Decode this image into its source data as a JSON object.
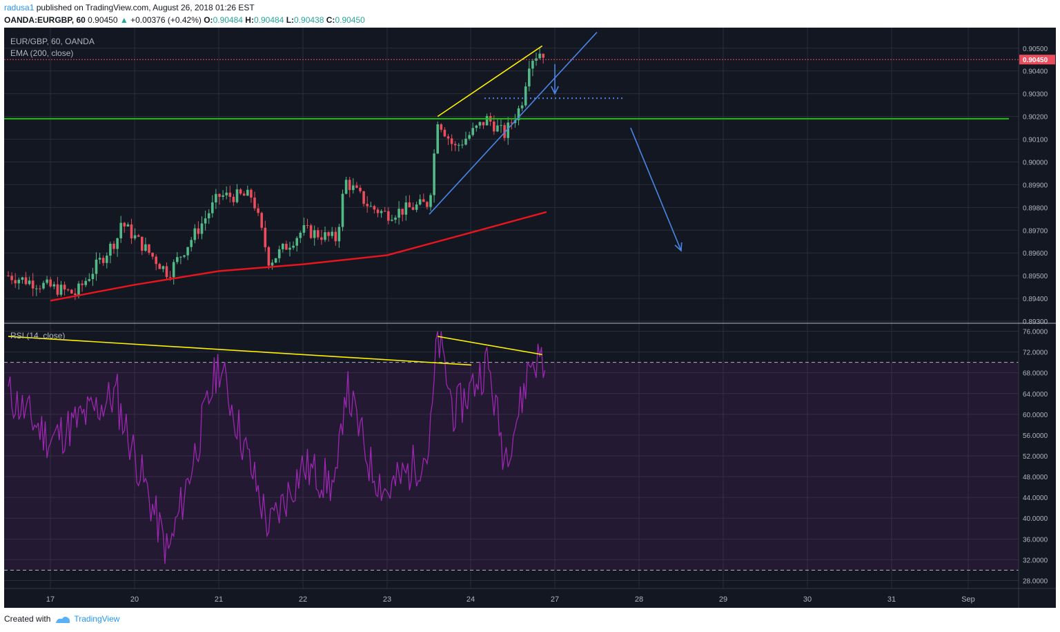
{
  "header": {
    "user": "radusa1",
    "published": " published on TradingView.com, August 26, 2018 01:26 EST",
    "symbol": "OANDA:EURGBP, 60",
    "price": "0.90450",
    "arrow": "▲",
    "change": "+0.00376 (+0.42%)",
    "o_label": "O:",
    "o": "0.90484",
    "h_label": "H:",
    "h": "0.90484",
    "l_label": "L:",
    "l": "0.90438",
    "c_label": "C:",
    "c": "0.90450"
  },
  "chart": {
    "title": "EUR/GBP, 60, OANDA",
    "ema_label": "EMA (200, close)",
    "rsi_label": "RSI (14, close)",
    "price_ticks": [
      "0.90500",
      "0.90400",
      "0.90300",
      "0.90200",
      "0.90100",
      "0.90000",
      "0.89900",
      "0.89800",
      "0.89700",
      "0.89600",
      "0.89500",
      "0.89400",
      "0.89300"
    ],
    "price_ticks_values": [
      0.905,
      0.904,
      0.903,
      0.902,
      0.901,
      0.9,
      0.899,
      0.898,
      0.897,
      0.896,
      0.895,
      0.894,
      0.893
    ],
    "last_price_label": "0.90450",
    "rsi_ticks": [
      "76.0000",
      "72.0000",
      "68.0000",
      "64.0000",
      "60.0000",
      "56.0000",
      "52.0000",
      "48.0000",
      "44.0000",
      "40.0000",
      "36.0000",
      "32.0000",
      "28.0000"
    ],
    "rsi_ticks_values": [
      76,
      72,
      68,
      64,
      60,
      56,
      52,
      48,
      44,
      40,
      36,
      32,
      28
    ],
    "x_ticks": [
      "17",
      "20",
      "21",
      "22",
      "23",
      "24",
      "27",
      "28",
      "29",
      "30",
      "31",
      "Sep"
    ]
  },
  "chart_data": {
    "type": "candlestick",
    "colors": {
      "up": "#53b987",
      "down": "#eb4d5c",
      "ema": "#e8151e",
      "rsi": "#9c27b0",
      "support": "#1dbf13",
      "trend": "#2962ff",
      "wedge": "#fff200",
      "background": "#131722"
    },
    "x_dates": [
      "17",
      "20",
      "21",
      "22",
      "23",
      "24",
      "27",
      "28",
      "29",
      "30",
      "31",
      "Sep"
    ],
    "price_range": [
      0.893,
      0.9056
    ],
    "rsi_range": [
      27,
      77
    ],
    "rsi_levels": [
      70,
      30
    ],
    "support_level": 0.9019,
    "ema200_approx": [
      {
        "x": "17",
        "y": 0.8939
      },
      {
        "x": "20",
        "y": 0.8946
      },
      {
        "x": "21",
        "y": 0.8952
      },
      {
        "x": "22",
        "y": 0.8955
      },
      {
        "x": "23",
        "y": 0.8959
      },
      {
        "x": "24",
        "y": 0.8969
      },
      {
        "x": "24.9",
        "y": 0.8978
      }
    ],
    "price_path": [
      {
        "x": "16.5",
        "y": 0.895
      },
      {
        "x": "17",
        "y": 0.8945
      },
      {
        "x": "17.3",
        "y": 0.8942
      },
      {
        "x": "17.8",
        "y": 0.8967
      },
      {
        "x": "19.8",
        "y": 0.8975
      },
      {
        "x": "20.4",
        "y": 0.8951
      },
      {
        "x": "20.8",
        "y": 0.8973
      },
      {
        "x": "21",
        "y": 0.8985
      },
      {
        "x": "21.4",
        "y": 0.8985
      },
      {
        "x": "21.6",
        "y": 0.8956
      },
      {
        "x": "22",
        "y": 0.897
      },
      {
        "x": "22.4",
        "y": 0.8966
      },
      {
        "x": "22.5",
        "y": 0.8992
      },
      {
        "x": "22.8",
        "y": 0.898
      },
      {
        "x": "23",
        "y": 0.8977
      },
      {
        "x": "23.5",
        "y": 0.8982
      },
      {
        "x": "23.6",
        "y": 0.9019
      },
      {
        "x": "23.8",
        "y": 0.9006
      },
      {
        "x": "24.2",
        "y": 0.9019
      },
      {
        "x": "24.4",
        "y": 0.9012
      },
      {
        "x": "24.6",
        "y": 0.9025
      },
      {
        "x": "24.7",
        "y": 0.9045
      },
      {
        "x": "24.85",
        "y": 0.9049
      },
      {
        "x": "24.9",
        "y": 0.9045
      }
    ],
    "rsi_path": [
      {
        "x": "16.5",
        "y": 64
      },
      {
        "x": "17",
        "y": 55
      },
      {
        "x": "17.8",
        "y": 64
      },
      {
        "x": "19.8",
        "y": 62
      },
      {
        "x": "20.4",
        "y": 33
      },
      {
        "x": "21",
        "y": 70
      },
      {
        "x": "21.6",
        "y": 38
      },
      {
        "x": "22",
        "y": 50
      },
      {
        "x": "22.4",
        "y": 46
      },
      {
        "x": "22.5",
        "y": 66
      },
      {
        "x": "22.8",
        "y": 50
      },
      {
        "x": "23",
        "y": 45
      },
      {
        "x": "23.5",
        "y": 53
      },
      {
        "x": "23.6",
        "y": 75
      },
      {
        "x": "23.8",
        "y": 60
      },
      {
        "x": "24.2",
        "y": 70
      },
      {
        "x": "24.4",
        "y": 52
      },
      {
        "x": "24.6",
        "y": 62
      },
      {
        "x": "24.7",
        "y": 70
      },
      {
        "x": "24.85",
        "y": 71
      },
      {
        "x": "24.9",
        "y": 66
      }
    ],
    "annotations": [
      {
        "kind": "rising-wedge-upper",
        "color": "yellow",
        "from": {
          "x": "23.6",
          "y": 0.902
        },
        "to": {
          "x": "24.85",
          "y": 0.9051
        }
      },
      {
        "kind": "rising-trendline",
        "color": "blue",
        "from": {
          "x": "23.5",
          "y": 0.8977
        },
        "to": {
          "x": "27.5",
          "y": 0.9057
        }
      },
      {
        "kind": "dotted-target",
        "color": "blue",
        "y": 0.9028
      },
      {
        "kind": "arrow-down",
        "color": "blue",
        "from": {
          "x": "25.0",
          "y": 0.9043
        },
        "to": {
          "x": "25.4",
          "y": 0.903
        }
      },
      {
        "kind": "arrow-down",
        "color": "blue",
        "from": {
          "x": "27.9",
          "y": 0.9015
        },
        "to": {
          "x": "28.5",
          "y": 0.8961
        }
      },
      {
        "kind": "rsi-divergence",
        "color": "yellow",
        "from": {
          "x": "16.5",
          "y": 75
        },
        "to": {
          "x": "24.0",
          "y": 69.5
        }
      },
      {
        "kind": "rsi-divergence",
        "color": "yellow",
        "from": {
          "x": "23.6",
          "y": 75
        },
        "to": {
          "x": "24.85",
          "y": 71.5
        }
      }
    ]
  },
  "footer": {
    "created": "Created with",
    "brand": "TradingView"
  }
}
